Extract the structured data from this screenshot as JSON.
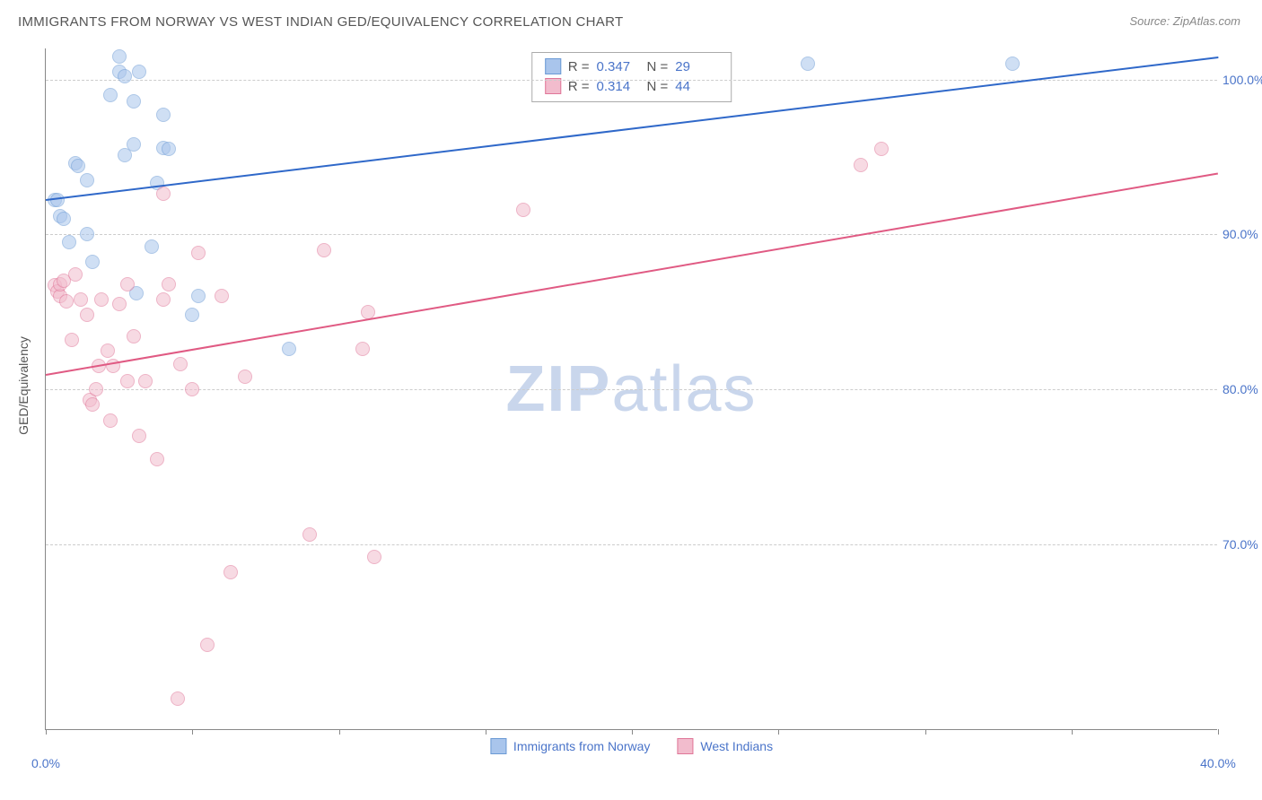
{
  "title": "IMMIGRANTS FROM NORWAY VS WEST INDIAN GED/EQUIVALENCY CORRELATION CHART",
  "source": "Source: ZipAtlas.com",
  "ylabel": "GED/Equivalency",
  "watermark_zip": "ZIP",
  "watermark_atlas": "atlas",
  "chart": {
    "type": "scatter",
    "background_color": "#ffffff",
    "grid_color": "#cccccc",
    "axis_color": "#888888",
    "tick_label_color": "#4a74c9",
    "tick_label_fontsize": 14,
    "title_fontsize": 15,
    "title_color": "#555555",
    "xlim": [
      0,
      40
    ],
    "ylim": [
      58,
      102
    ],
    "ytick_values": [
      70,
      80,
      90,
      100
    ],
    "ytick_labels": [
      "70.0%",
      "80.0%",
      "90.0%",
      "100.0%"
    ],
    "xtick_values": [
      0,
      5,
      10,
      15,
      20,
      25,
      30,
      35,
      40
    ],
    "xtick_labels": {
      "0": "0.0%",
      "40": "40.0%"
    },
    "marker_radius": 8,
    "marker_border_width": 1,
    "trendline_width": 2,
    "series": [
      {
        "name": "Immigrants from Norway",
        "fill_color": "#a9c5ec",
        "fill_opacity": 0.55,
        "border_color": "#6b9ad5",
        "line_color": "#2f68c9",
        "R": "0.347",
        "N": "29",
        "trend": {
          "x1": 0,
          "y1": 92.3,
          "x2": 40,
          "y2": 101.5
        },
        "points": [
          [
            0.3,
            92.2
          ],
          [
            0.4,
            92.2
          ],
          [
            0.5,
            91.2
          ],
          [
            0.6,
            91.0
          ],
          [
            0.8,
            89.5
          ],
          [
            1.0,
            94.6
          ],
          [
            1.1,
            94.4
          ],
          [
            1.4,
            90.0
          ],
          [
            1.4,
            93.5
          ],
          [
            1.6,
            88.2
          ],
          [
            2.2,
            99.0
          ],
          [
            2.5,
            100.5
          ],
          [
            2.5,
            101.5
          ],
          [
            2.7,
            95.1
          ],
          [
            2.7,
            100.2
          ],
          [
            3.0,
            95.8
          ],
          [
            3.0,
            98.6
          ],
          [
            3.1,
            86.2
          ],
          [
            3.2,
            100.5
          ],
          [
            3.6,
            89.2
          ],
          [
            3.8,
            93.3
          ],
          [
            4.0,
            95.6
          ],
          [
            4.0,
            97.7
          ],
          [
            4.2,
            95.5
          ],
          [
            5.0,
            84.8
          ],
          [
            5.2,
            86.0
          ],
          [
            8.3,
            82.6
          ],
          [
            26.0,
            101.0
          ],
          [
            33.0,
            101.0
          ]
        ]
      },
      {
        "name": "West Indians",
        "fill_color": "#f2bccd",
        "fill_opacity": 0.55,
        "border_color": "#e07698",
        "line_color": "#e05a83",
        "R": "0.314",
        "N": "44",
        "trend": {
          "x1": 0,
          "y1": 81.0,
          "x2": 40,
          "y2": 94.0
        },
        "points": [
          [
            0.3,
            86.7
          ],
          [
            0.4,
            86.3
          ],
          [
            0.5,
            86.0
          ],
          [
            0.5,
            86.8
          ],
          [
            0.6,
            87.0
          ],
          [
            0.7,
            85.7
          ],
          [
            0.9,
            83.2
          ],
          [
            1.0,
            87.4
          ],
          [
            1.2,
            85.8
          ],
          [
            1.4,
            84.8
          ],
          [
            1.5,
            79.3
          ],
          [
            1.6,
            79.0
          ],
          [
            1.7,
            80.0
          ],
          [
            1.8,
            81.5
          ],
          [
            1.9,
            85.8
          ],
          [
            2.1,
            82.5
          ],
          [
            2.2,
            78.0
          ],
          [
            2.3,
            81.5
          ],
          [
            2.5,
            85.5
          ],
          [
            2.8,
            80.5
          ],
          [
            2.8,
            86.8
          ],
          [
            3.0,
            83.4
          ],
          [
            3.2,
            77.0
          ],
          [
            3.4,
            80.5
          ],
          [
            3.8,
            75.5
          ],
          [
            4.0,
            85.8
          ],
          [
            4.0,
            92.6
          ],
          [
            4.2,
            86.8
          ],
          [
            4.5,
            60.0
          ],
          [
            4.6,
            81.6
          ],
          [
            5.0,
            80.0
          ],
          [
            5.2,
            88.8
          ],
          [
            5.5,
            63.5
          ],
          [
            6.0,
            86.0
          ],
          [
            6.3,
            68.2
          ],
          [
            6.8,
            80.8
          ],
          [
            9.0,
            70.6
          ],
          [
            9.5,
            89.0
          ],
          [
            10.8,
            82.6
          ],
          [
            11.0,
            85.0
          ],
          [
            11.2,
            69.2
          ],
          [
            16.3,
            91.6
          ],
          [
            27.8,
            94.5
          ],
          [
            28.5,
            95.5
          ]
        ]
      }
    ]
  },
  "legend": {
    "series1_label": "Immigrants from Norway",
    "series2_label": "West Indians"
  },
  "stats_labels": {
    "R": "R =",
    "N": "N ="
  }
}
